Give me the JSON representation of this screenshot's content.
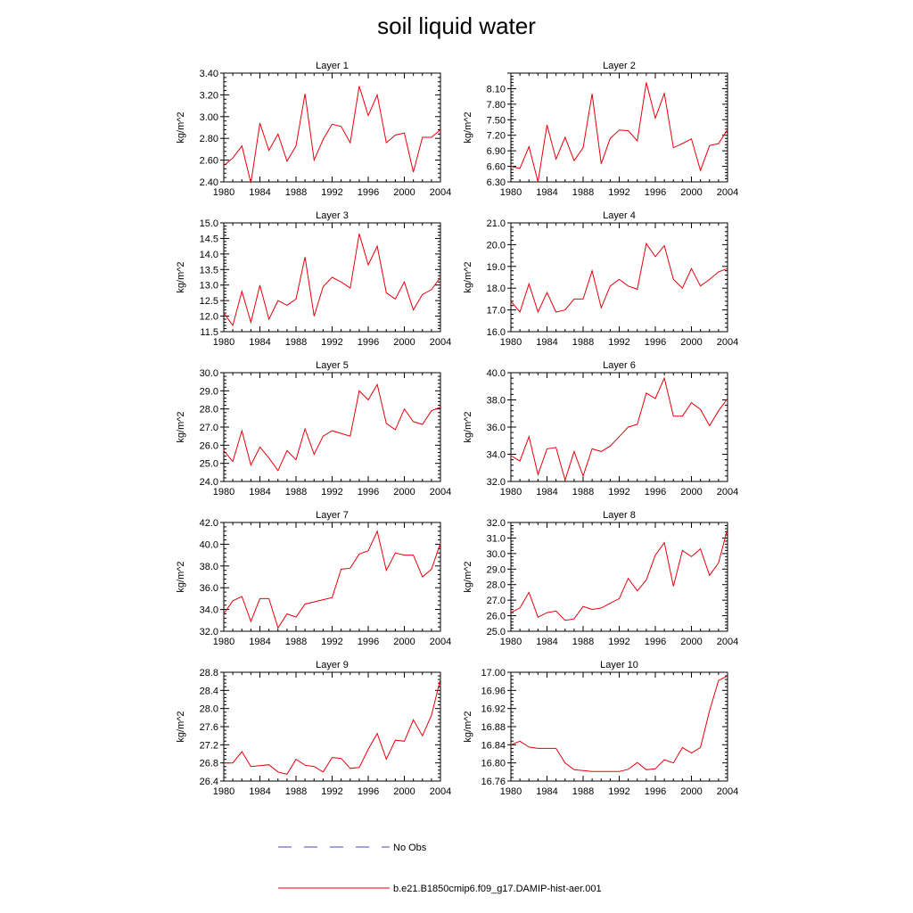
{
  "title": "soil liquid water",
  "legend": [
    {
      "label": "No Obs",
      "color": "#4a4ab8",
      "style": "dashed"
    },
    {
      "label": "b.e21.B1850cmip6.f09_g17.DAMIP-hist-aer.001",
      "color": "#e8000b",
      "style": "solid"
    }
  ],
  "series_color": "#e8000b",
  "chart_data": [
    {
      "type": "line",
      "title": "Layer 1",
      "ylabel": "kg/m^2",
      "xlim": [
        1980,
        2004
      ],
      "ylim": [
        2.4,
        3.4
      ],
      "xticks": [
        1980,
        1984,
        1988,
        1992,
        1996,
        2000,
        2004
      ],
      "yticks": [
        "2.40",
        "2.60",
        "2.80",
        "3.00",
        "3.20",
        "3.40"
      ],
      "x": [
        1980,
        1981,
        1982,
        1983,
        1984,
        1985,
        1986,
        1987,
        1988,
        1989,
        1990,
        1991,
        1992,
        1993,
        1994,
        1995,
        1996,
        1997,
        1998,
        1999,
        2000,
        2001,
        2002,
        2003,
        2004
      ],
      "series": [
        {
          "name": "b.e21.B1850cmip6.f09_g17.DAMIP-hist-aer.001",
          "values": [
            2.55,
            2.62,
            2.73,
            2.39,
            2.94,
            2.69,
            2.84,
            2.59,
            2.73,
            3.21,
            2.6,
            2.79,
            2.93,
            2.91,
            2.76,
            3.28,
            3.01,
            3.2,
            2.76,
            2.83,
            2.85,
            2.49,
            2.81,
            2.81,
            2.88
          ]
        }
      ]
    },
    {
      "type": "line",
      "title": "Layer 2",
      "ylabel": "kg/m^2",
      "xlim": [
        1980,
        2004
      ],
      "ylim": [
        6.3,
        8.4
      ],
      "xticks": [
        1980,
        1984,
        1988,
        1992,
        1996,
        2000,
        2004
      ],
      "yticks": [
        "6.30",
        "6.60",
        "6.90",
        "7.20",
        "7.50",
        "7.80",
        "8.10"
      ],
      "x": [
        1980,
        1981,
        1982,
        1983,
        1984,
        1985,
        1986,
        1987,
        1988,
        1989,
        1990,
        1991,
        1992,
        1993,
        1994,
        1995,
        1996,
        1997,
        1998,
        1999,
        2000,
        2001,
        2002,
        2003,
        2004
      ],
      "series": [
        {
          "name": "b.e21.B1850cmip6.f09_g17.DAMIP-hist-aer.001",
          "values": [
            6.6,
            6.56,
            6.98,
            6.3,
            7.4,
            6.74,
            7.16,
            6.71,
            6.96,
            8.0,
            6.65,
            7.14,
            7.3,
            7.29,
            7.09,
            8.22,
            7.53,
            8.01,
            6.96,
            7.04,
            7.13,
            6.52,
            7.0,
            7.04,
            7.31
          ]
        }
      ]
    },
    {
      "type": "line",
      "title": "Layer 3",
      "ylabel": "kg/m^2",
      "xlim": [
        1980,
        2004
      ],
      "ylim": [
        11.5,
        15.0
      ],
      "xticks": [
        1980,
        1984,
        1988,
        1992,
        1996,
        2000,
        2004
      ],
      "yticks": [
        "11.5",
        "12.0",
        "12.5",
        "13.0",
        "13.5",
        "14.0",
        "14.5",
        "15.0"
      ],
      "x": [
        1980,
        1981,
        1982,
        1983,
        1984,
        1985,
        1986,
        1987,
        1988,
        1989,
        1990,
        1991,
        1992,
        1993,
        1994,
        1995,
        1996,
        1997,
        1998,
        1999,
        2000,
        2001,
        2002,
        2003,
        2004
      ],
      "series": [
        {
          "name": "b.e21.B1850cmip6.f09_g17.DAMIP-hist-aer.001",
          "values": [
            12.1,
            11.7,
            12.8,
            11.8,
            13.0,
            11.9,
            12.5,
            12.35,
            12.55,
            13.9,
            12.0,
            12.95,
            13.25,
            13.1,
            12.9,
            14.65,
            13.65,
            14.25,
            12.75,
            12.55,
            13.1,
            12.2,
            12.7,
            12.85,
            13.25
          ]
        }
      ]
    },
    {
      "type": "line",
      "title": "Layer 4",
      "ylabel": "kg/m^2",
      "xlim": [
        1980,
        2004
      ],
      "ylim": [
        16.0,
        21.0
      ],
      "xticks": [
        1980,
        1984,
        1988,
        1992,
        1996,
        2000,
        2004
      ],
      "yticks": [
        "16.0",
        "17.0",
        "18.0",
        "19.0",
        "20.0",
        "21.0"
      ],
      "x": [
        1980,
        1981,
        1982,
        1983,
        1984,
        1985,
        1986,
        1987,
        1988,
        1989,
        1990,
        1991,
        1992,
        1993,
        1994,
        1995,
        1996,
        1997,
        1998,
        1999,
        2000,
        2001,
        2002,
        2003,
        2004
      ],
      "series": [
        {
          "name": "b.e21.B1850cmip6.f09_g17.DAMIP-hist-aer.001",
          "values": [
            17.4,
            16.9,
            18.2,
            16.9,
            17.8,
            16.9,
            17.0,
            17.5,
            17.5,
            18.8,
            17.1,
            18.1,
            18.4,
            18.1,
            17.95,
            20.05,
            19.45,
            19.95,
            18.4,
            18.0,
            18.9,
            18.1,
            18.4,
            18.75,
            18.9
          ]
        }
      ]
    },
    {
      "type": "line",
      "title": "Layer 5",
      "ylabel": "kg/m^2",
      "xlim": [
        1980,
        2004
      ],
      "ylim": [
        24.0,
        30.0
      ],
      "xticks": [
        1980,
        1984,
        1988,
        1992,
        1996,
        2000,
        2004
      ],
      "yticks": [
        "24.0",
        "25.0",
        "26.0",
        "27.0",
        "28.0",
        "29.0",
        "30.0"
      ],
      "x": [
        1980,
        1981,
        1982,
        1983,
        1984,
        1985,
        1986,
        1987,
        1988,
        1989,
        1990,
        1991,
        1992,
        1993,
        1994,
        1995,
        1996,
        1997,
        1998,
        1999,
        2000,
        2001,
        2002,
        2003,
        2004
      ],
      "series": [
        {
          "name": "b.e21.B1850cmip6.f09_g17.DAMIP-hist-aer.001",
          "values": [
            25.7,
            25.1,
            26.8,
            24.9,
            25.9,
            25.3,
            24.6,
            25.7,
            25.2,
            26.9,
            25.5,
            26.5,
            26.8,
            26.65,
            26.5,
            29.0,
            28.5,
            29.35,
            27.2,
            26.85,
            28.0,
            27.3,
            27.15,
            27.9,
            28.1
          ]
        }
      ]
    },
    {
      "type": "line",
      "title": "Layer 6",
      "ylabel": "kg/m^2",
      "xlim": [
        1980,
        2004
      ],
      "ylim": [
        32.0,
        40.0
      ],
      "xticks": [
        1980,
        1984,
        1988,
        1992,
        1996,
        2000,
        2004
      ],
      "yticks": [
        "32.0",
        "34.0",
        "36.0",
        "38.0",
        "40.0"
      ],
      "x": [
        1980,
        1981,
        1982,
        1983,
        1984,
        1985,
        1986,
        1987,
        1988,
        1989,
        1990,
        1991,
        1992,
        1993,
        1994,
        1995,
        1996,
        1997,
        1998,
        1999,
        2000,
        2001,
        2002,
        2003,
        2004
      ],
      "series": [
        {
          "name": "b.e21.B1850cmip6.f09_g17.DAMIP-hist-aer.001",
          "values": [
            33.9,
            33.5,
            35.3,
            32.5,
            34.4,
            34.5,
            32.1,
            34.2,
            32.4,
            34.4,
            34.2,
            34.6,
            35.3,
            36.0,
            36.2,
            38.5,
            38.1,
            39.6,
            36.8,
            36.8,
            37.8,
            37.3,
            36.1,
            37.2,
            38.1
          ]
        }
      ]
    },
    {
      "type": "line",
      "title": "Layer 7",
      "ylabel": "kg/m^2",
      "xlim": [
        1980,
        2004
      ],
      "ylim": [
        32.0,
        42.0
      ],
      "xticks": [
        1980,
        1984,
        1988,
        1992,
        1996,
        2000,
        2004
      ],
      "yticks": [
        "32.0",
        "34.0",
        "36.0",
        "38.0",
        "40.0",
        "42.0"
      ],
      "x": [
        1980,
        1981,
        1982,
        1983,
        1984,
        1985,
        1986,
        1987,
        1988,
        1989,
        1990,
        1991,
        1992,
        1993,
        1994,
        1995,
        1996,
        1997,
        1998,
        1999,
        2000,
        2001,
        2002,
        2003,
        2004
      ],
      "series": [
        {
          "name": "b.e21.B1850cmip6.f09_g17.DAMIP-hist-aer.001",
          "values": [
            33.6,
            34.8,
            35.2,
            32.9,
            35.0,
            35.0,
            32.3,
            33.6,
            33.3,
            34.5,
            34.7,
            34.9,
            35.1,
            37.7,
            37.8,
            39.1,
            39.4,
            41.2,
            37.6,
            39.2,
            39.0,
            39.0,
            37.0,
            37.7,
            40.1
          ]
        }
      ]
    },
    {
      "type": "line",
      "title": "Layer 8",
      "ylabel": "kg/m^2",
      "xlim": [
        1980,
        2004
      ],
      "ylim": [
        25.0,
        32.0
      ],
      "xticks": [
        1980,
        1984,
        1988,
        1992,
        1996,
        2000,
        2004
      ],
      "yticks": [
        "25.0",
        "26.0",
        "27.0",
        "28.0",
        "29.0",
        "30.0",
        "31.0",
        "32.0"
      ],
      "x": [
        1980,
        1981,
        1982,
        1983,
        1984,
        1985,
        1986,
        1987,
        1988,
        1989,
        1990,
        1991,
        1992,
        1993,
        1994,
        1995,
        1996,
        1997,
        1998,
        1999,
        2000,
        2001,
        2002,
        2003,
        2004
      ],
      "series": [
        {
          "name": "b.e21.B1850cmip6.f09_g17.DAMIP-hist-aer.001",
          "values": [
            26.2,
            26.5,
            27.5,
            25.9,
            26.2,
            26.3,
            25.7,
            25.8,
            26.6,
            26.4,
            26.5,
            26.8,
            27.1,
            28.4,
            27.6,
            28.3,
            29.9,
            30.7,
            27.9,
            30.2,
            29.8,
            30.3,
            28.6,
            29.4,
            31.6
          ]
        }
      ]
    },
    {
      "type": "line",
      "title": "Layer 9",
      "ylabel": "kg/m^2",
      "xlim": [
        1980,
        2004
      ],
      "ylim": [
        26.4,
        28.8
      ],
      "xticks": [
        1980,
        1984,
        1988,
        1992,
        1996,
        2000,
        2004
      ],
      "yticks": [
        "26.4",
        "26.8",
        "27.2",
        "27.6",
        "28.0",
        "28.4",
        "28.8"
      ],
      "x": [
        1980,
        1981,
        1982,
        1983,
        1984,
        1985,
        1986,
        1987,
        1988,
        1989,
        1990,
        1991,
        1992,
        1993,
        1994,
        1995,
        1996,
        1997,
        1998,
        1999,
        2000,
        2001,
        2002,
        2003,
        2004
      ],
      "series": [
        {
          "name": "b.e21.B1850cmip6.f09_g17.DAMIP-hist-aer.001",
          "values": [
            26.8,
            26.8,
            27.05,
            26.72,
            26.74,
            26.76,
            26.6,
            26.55,
            26.88,
            26.75,
            26.72,
            26.6,
            26.92,
            26.9,
            26.68,
            26.7,
            27.1,
            27.45,
            26.88,
            27.3,
            27.28,
            27.75,
            27.4,
            27.85,
            28.65
          ]
        }
      ]
    },
    {
      "type": "line",
      "title": "Layer 10",
      "ylabel": "kg/m^2",
      "xlim": [
        1980,
        2004
      ],
      "ylim": [
        16.76,
        17.0
      ],
      "xticks": [
        1980,
        1984,
        1988,
        1992,
        1996,
        2000,
        2004
      ],
      "yticks": [
        "16.76",
        "16.80",
        "16.84",
        "16.88",
        "16.92",
        "16.96",
        "17.00"
      ],
      "x": [
        1980,
        1981,
        1982,
        1983,
        1984,
        1985,
        1986,
        1987,
        1988,
        1989,
        1990,
        1991,
        1992,
        1993,
        1994,
        1995,
        1996,
        1997,
        1998,
        1999,
        2000,
        2001,
        2002,
        2003,
        2004
      ],
      "series": [
        {
          "name": "b.e21.B1850cmip6.f09_g17.DAMIP-hist-aer.001",
          "values": [
            16.84,
            16.848,
            16.835,
            16.832,
            16.832,
            16.832,
            16.8,
            16.785,
            16.783,
            16.781,
            16.781,
            16.781,
            16.781,
            16.786,
            16.801,
            16.785,
            16.787,
            16.807,
            16.8,
            16.834,
            16.822,
            16.834,
            16.915,
            16.982,
            16.992
          ]
        }
      ]
    }
  ]
}
